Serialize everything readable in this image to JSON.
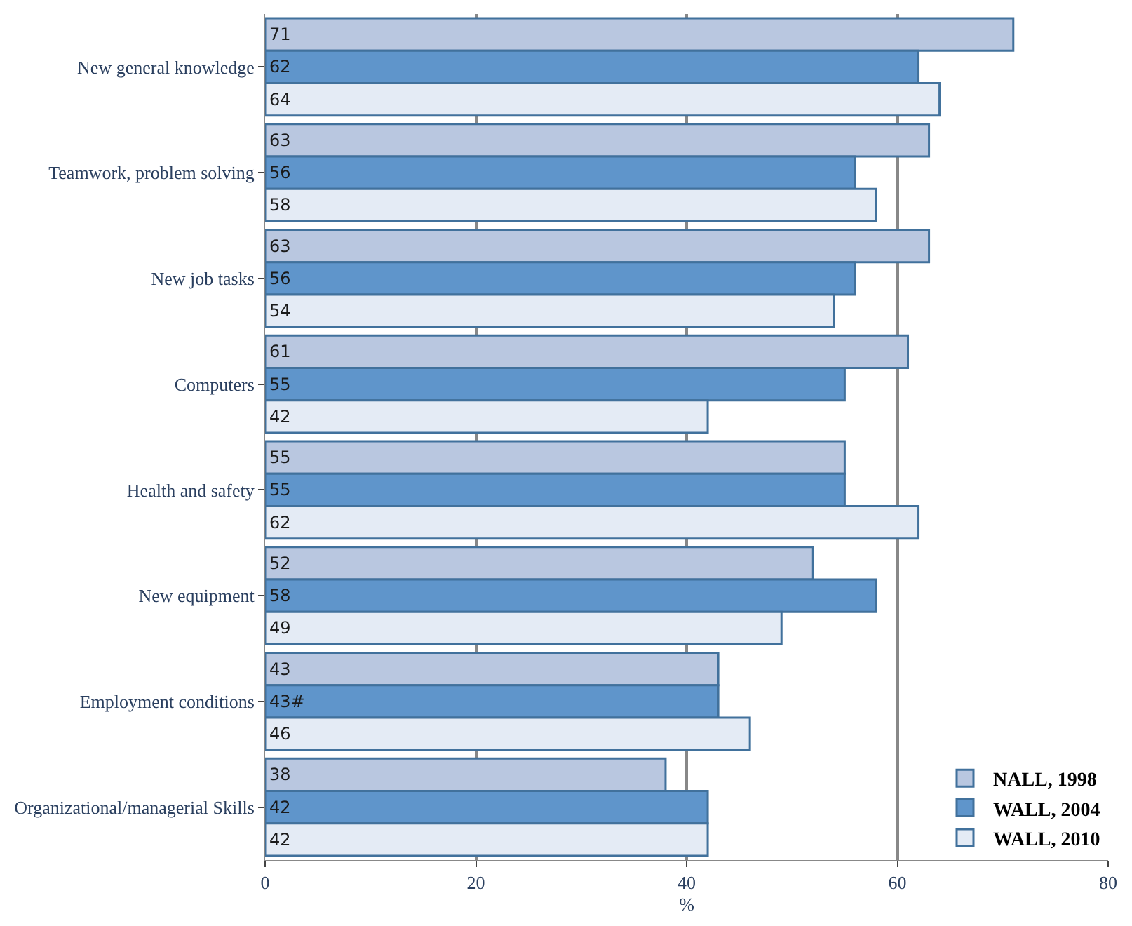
{
  "chart_data": {
    "type": "bar",
    "orientation": "horizontal",
    "xlabel": "%",
    "categories": [
      "New general knowledge",
      "Teamwork, problem solving",
      "New job tasks",
      "Computers",
      "Health and safety",
      "New equipment",
      "Employment conditions",
      "Organizational/managerial Skills"
    ],
    "series": [
      {
        "name": "NALL, 1998",
        "color": "#b9c7e0",
        "values": [
          71,
          63,
          63,
          61,
          55,
          52,
          43,
          38
        ],
        "value_labels": [
          "71",
          "63",
          "63",
          "61",
          "55",
          "52",
          "43",
          "38"
        ]
      },
      {
        "name": "WALL, 2004",
        "color": "#5f95cb",
        "values": [
          62,
          56,
          56,
          55,
          55,
          58,
          43,
          42
        ],
        "value_labels": [
          "62",
          "56",
          "56",
          "55",
          "55",
          "58",
          "43#",
          "42"
        ]
      },
      {
        "name": "WALL, 2010",
        "color": "#e4ebf5",
        "values": [
          64,
          58,
          54,
          42,
          62,
          49,
          46,
          42
        ],
        "value_labels": [
          "64",
          "58",
          "54",
          "42",
          "62",
          "49",
          "46",
          "42"
        ]
      }
    ],
    "xlim": [
      0,
      80
    ],
    "xticks": [
      0,
      20,
      40,
      60,
      80
    ],
    "grid": "x",
    "legend": "bottom right"
  }
}
